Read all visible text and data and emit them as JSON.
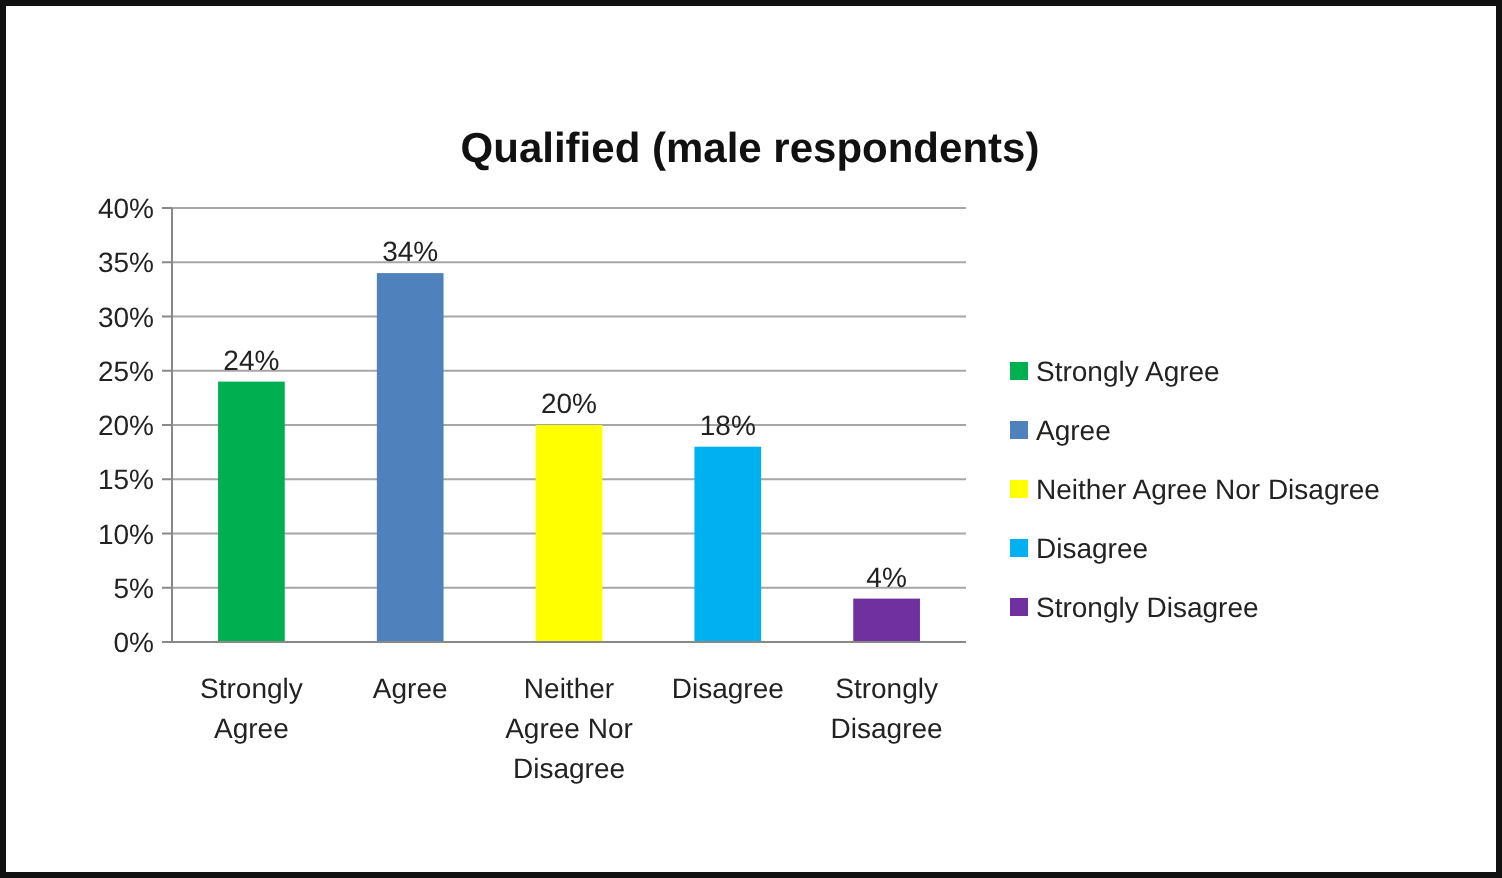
{
  "chart_data": {
    "type": "bar",
    "title": "Qualified (male respondents)",
    "categories": [
      "Strongly Agree",
      "Agree",
      "Neither Agree Nor Disagree",
      "Disagree",
      "Strongly Disagree"
    ],
    "stacked": true,
    "series": [
      {
        "name": "Strongly Agree",
        "color": "#00b050",
        "values": [
          24,
          null,
          null,
          null,
          null
        ],
        "value_labels": [
          "24%",
          null,
          null,
          null,
          null
        ]
      },
      {
        "name": "Agree",
        "color": "#4f81bd",
        "values": [
          null,
          34,
          null,
          null,
          null
        ],
        "value_labels": [
          null,
          "34%",
          null,
          null,
          null
        ]
      },
      {
        "name": "Neither Agree Nor Disagree",
        "color": "#ffff00",
        "values": [
          null,
          null,
          20,
          null,
          null
        ],
        "value_labels": [
          null,
          null,
          "20%",
          null,
          null
        ]
      },
      {
        "name": "Disagree",
        "color": "#00b0f0",
        "values": [
          null,
          null,
          null,
          18,
          null
        ],
        "value_labels": [
          null,
          null,
          null,
          "18%",
          null
        ]
      },
      {
        "name": "Strongly Disagree",
        "color": "#7030a0",
        "values": [
          null,
          null,
          null,
          null,
          4
        ],
        "value_labels": [
          null,
          null,
          null,
          null,
          "4%"
        ]
      }
    ],
    "ylim": [
      0,
      40
    ],
    "yticks": [
      {
        "value": 0,
        "label": "0%"
      },
      {
        "value": 5,
        "label": "5%"
      },
      {
        "value": 10,
        "label": "10%"
      },
      {
        "value": 15,
        "label": "15%"
      },
      {
        "value": 20,
        "label": "20%"
      },
      {
        "value": 25,
        "label": "25%"
      },
      {
        "value": 30,
        "label": "30%"
      },
      {
        "value": 35,
        "label": "35%"
      },
      {
        "value": 40,
        "label": "40%"
      }
    ],
    "grid": "y",
    "legend": "right"
  }
}
